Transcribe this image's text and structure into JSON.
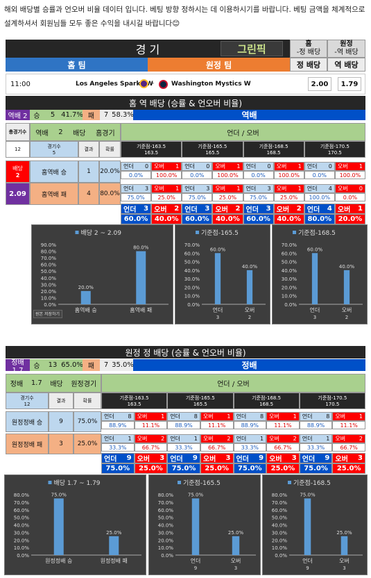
{
  "intro": "해외 배당별 승률과 언오버 비율 데이터 입니다. 베팅 방향 정하시는 데 이용하시기를 바랍니다. 베팅 금액을 체계적으로 설계하셔서 회원님들 모두 좋은 수익을 내시길 바랍니다😊",
  "header": {
    "title": "경 기",
    "home_head": "홈",
    "away_head": "원정",
    "home_sub": "-정 배당",
    "away_sub": "-역 배당",
    "home_team_bar": "홈 팀",
    "away_team_bar": "원정 팀",
    "odds_home_label": "정 배당",
    "odds_away_label": "역 배당",
    "logo_text": "그린픽"
  },
  "match": {
    "time": "11:00",
    "home": "Los Angeles Sparks W",
    "sep": "-",
    "away": "Washington Mystics W",
    "odds_home": "2.00",
    "odds_away": "1.79"
  },
  "sec1": {
    "title": "홈 역 배당 (승률 & 언오버 비율)",
    "summary": [
      "역배 2",
      "승",
      "5",
      "41.7%",
      "패",
      "7",
      "58.3%"
    ],
    "right_title": "역배",
    "total_games_label": "총경기수",
    "total_games": "12",
    "bet_label": "역배",
    "bet_val": "2",
    "odds_label": "배당",
    "type_label": "홈경기",
    "uo_header": "언더 / 오버",
    "games_label": "경기수",
    "games_val": "5",
    "result_label": "결과",
    "pct_label": "확률",
    "lines": [
      "기준점-163.5",
      "기준점-165.5",
      "기준점-168.5",
      "기준점-170.5"
    ],
    "line_vals": [
      "163.5",
      "165.5",
      "168.5",
      "170.5"
    ],
    "side_odds_label": "배당",
    "side_odds_val": "2",
    "side_odds2": "2.09",
    "rows": [
      {
        "label": "홈역배 승",
        "count": "1",
        "pct": "20.0%",
        "uo": [
          [
            "언더",
            "0",
            "오버",
            "1",
            "0.0%",
            "100.0%"
          ],
          [
            "언더",
            "0",
            "오버",
            "1",
            "0.0%",
            "100.0%"
          ],
          [
            "언더",
            "0",
            "오버",
            "1",
            "0.0%",
            "100.0%"
          ],
          [
            "언더",
            "0",
            "오버",
            "1",
            "0.0%",
            "100.0%"
          ]
        ]
      },
      {
        "label": "홈역배 패",
        "count": "4",
        "pct": "80.0%",
        "uo": [
          [
            "언더",
            "3",
            "오버",
            "1",
            "75.0%",
            "25.0%"
          ],
          [
            "언더",
            "3",
            "오버",
            "1",
            "75.0%",
            "25.0%"
          ],
          [
            "언더",
            "3",
            "오버",
            "1",
            "75.0%",
            "25.0%"
          ],
          [
            "언더",
            "4",
            "오버",
            "0",
            "100.0%",
            "0.0%"
          ]
        ]
      }
    ],
    "totals": [
      [
        "언더",
        "3",
        "오버",
        "2",
        "60.0%",
        "40.0%"
      ],
      [
        "언더",
        "3",
        "오버",
        "2",
        "60.0%",
        "40.0%"
      ],
      [
        "언더",
        "3",
        "오버",
        "2",
        "60.0%",
        "40.0%"
      ],
      [
        "언더",
        "4",
        "오버",
        "1",
        "80.0%",
        "20.0%"
      ]
    ],
    "save_btn": "원본 저장하기"
  },
  "sec2": {
    "title": "원정 정 배당 (승률 & 언오버 비율)",
    "summary": [
      "정배 1.7",
      "승",
      "13",
      "65.0%",
      "패",
      "7",
      "35.0%"
    ],
    "right_title": "정배",
    "bet_label": "정배",
    "bet_val": "1.7",
    "odds_label": "배당",
    "type_label": "원정경기",
    "uo_header": "언더 / 오버",
    "games_label": "경기수",
    "games_val": "12",
    "result_label": "결과",
    "pct_label": "확률",
    "lines": [
      "기준점-163.5",
      "기준점-165.5",
      "기준점-168.5",
      "기준점-170.5"
    ],
    "line_vals": [
      "163.5",
      "165.5",
      "168.5",
      "170.5"
    ],
    "rows": [
      {
        "label": "원정정배 승",
        "count": "9",
        "pct": "75.0%",
        "uo": [
          [
            "언더",
            "8",
            "오버",
            "1",
            "88.9%",
            "11.1%"
          ],
          [
            "언더",
            "8",
            "오버",
            "1",
            "88.9%",
            "11.1%"
          ],
          [
            "언더",
            "8",
            "오버",
            "1",
            "88.9%",
            "11.1%"
          ],
          [
            "언더",
            "8",
            "오버",
            "1",
            "88.9%",
            "11.1%"
          ]
        ]
      },
      {
        "label": "원정정배 패",
        "count": "3",
        "pct": "25.0%",
        "uo": [
          [
            "언더",
            "1",
            "오버",
            "2",
            "33.3%",
            "66.7%"
          ],
          [
            "언더",
            "1",
            "오버",
            "2",
            "33.3%",
            "66.7%"
          ],
          [
            "언더",
            "1",
            "오버",
            "2",
            "33.3%",
            "66.7%"
          ],
          [
            "언더",
            "1",
            "오버",
            "2",
            "33.3%",
            "66.7%"
          ]
        ]
      }
    ],
    "totals": [
      [
        "언더",
        "9",
        "오버",
        "3",
        "75.0%",
        "25.0%"
      ],
      [
        "언더",
        "9",
        "오버",
        "3",
        "75.0%",
        "25.0%"
      ],
      [
        "언더",
        "9",
        "오버",
        "3",
        "75.0%",
        "25.0%"
      ],
      [
        "언더",
        "9",
        "오버",
        "3",
        "75.0%",
        "25.0%"
      ]
    ]
  },
  "chart_data": [
    {
      "type": "bar",
      "title": "배당 2 ~ 2.09",
      "categories": [
        "홈역배 승",
        "홈역배 패"
      ],
      "values": [
        20.0,
        80.0
      ],
      "ylim": [
        0,
        90
      ],
      "yticks": [
        "0.0%",
        "10.0%",
        "20.0%",
        "30.0%",
        "40.0%",
        "50.0%",
        "60.0%",
        "70.0%",
        "80.0%",
        "90.0%"
      ],
      "labels": [
        "20.0%",
        "80.0%"
      ],
      "sublabels": [
        "",
        ""
      ]
    },
    {
      "type": "bar",
      "title": "기준점-165.5",
      "categories": [
        "언더",
        "오버"
      ],
      "values": [
        60.0,
        40.0
      ],
      "ylim": [
        0,
        70
      ],
      "yticks": [
        "0.0%",
        "10.0%",
        "20.0%",
        "30.0%",
        "40.0%",
        "50.0%",
        "60.0%",
        "70.0%"
      ],
      "labels": [
        "60.0%",
        "40.0%"
      ],
      "sublabels": [
        "3",
        "2"
      ]
    },
    {
      "type": "bar",
      "title": "기준점-168.5",
      "categories": [
        "언더",
        "오버"
      ],
      "values": [
        60.0,
        40.0
      ],
      "ylim": [
        0,
        70
      ],
      "yticks": [
        "0.0%",
        "10.0%",
        "20.0%",
        "30.0%",
        "40.0%",
        "50.0%",
        "60.0%",
        "70.0%"
      ],
      "labels": [
        "60.0%",
        "40.0%"
      ],
      "sublabels": [
        "3",
        "2"
      ]
    },
    {
      "type": "bar",
      "title": "배당 1.7 ~ 1.79",
      "categories": [
        "원정정배 승",
        "원정정배 패"
      ],
      "values": [
        75.0,
        25.0
      ],
      "ylim": [
        0,
        80
      ],
      "yticks": [
        "0.0%",
        "10.0%",
        "20.0%",
        "30.0%",
        "40.0%",
        "50.0%",
        "60.0%",
        "70.0%",
        "80.0%"
      ],
      "labels": [
        "75.0%",
        "25.0%"
      ],
      "sublabels": [
        "",
        ""
      ]
    },
    {
      "type": "bar",
      "title": "기준점-165.5",
      "categories": [
        "언더",
        "오버"
      ],
      "values": [
        75.0,
        25.0
      ],
      "ylim": [
        0,
        80
      ],
      "yticks": [
        "0.0%",
        "10.0%",
        "20.0%",
        "30.0%",
        "40.0%",
        "50.0%",
        "60.0%",
        "70.0%",
        "80.0%"
      ],
      "labels": [
        "75.0%",
        "25.0%"
      ],
      "sublabels": [
        "9",
        "3"
      ]
    },
    {
      "type": "bar",
      "title": "기준점-168.5",
      "categories": [
        "언더",
        "오버"
      ],
      "values": [
        75.0,
        25.0
      ],
      "ylim": [
        0,
        80
      ],
      "yticks": [
        "0.0%",
        "10.0%",
        "20.0%",
        "30.0%",
        "40.0%",
        "50.0%",
        "60.0%",
        "70.0%",
        "80.0%"
      ],
      "labels": [
        "75.0%",
        "25.0%"
      ],
      "sublabels": [
        "9",
        "3"
      ]
    }
  ],
  "colors": {
    "bar": "#5b9bd5",
    "chart_bg": "#3d3d3d"
  }
}
